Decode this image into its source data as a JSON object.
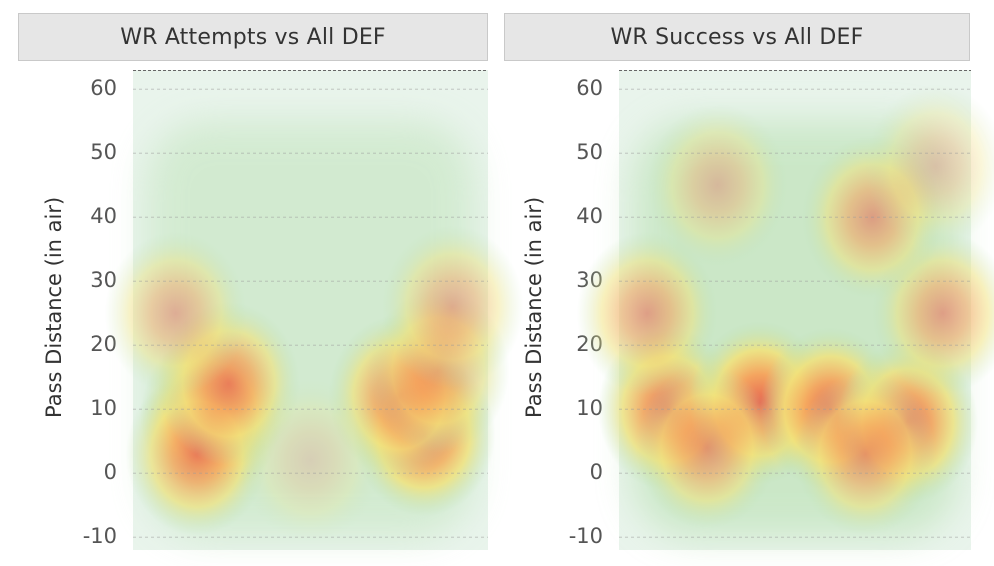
{
  "chart_data": [
    {
      "type": "heatmap",
      "title": "WR Attempts vs All DEF",
      "ylabel": "Pass Distance (in air)",
      "xlabel": "",
      "ylim": [
        -12,
        63
      ],
      "yticks": [
        60,
        50,
        40,
        30,
        20,
        10,
        0,
        -10
      ],
      "grid": true,
      "colormap": [
        "#e9f4ec",
        "#b8e0b0",
        "#f2e27a",
        "#f6a15a",
        "#e8604a"
      ],
      "hotspots": [
        {
          "x": 0.22,
          "y": 9,
          "intensity": 0.85
        },
        {
          "x": 0.18,
          "y": 3,
          "intensity": 0.75
        },
        {
          "x": 0.27,
          "y": 14,
          "intensity": 0.7
        },
        {
          "x": 0.82,
          "y": 6,
          "intensity": 0.9
        },
        {
          "x": 0.75,
          "y": 12,
          "intensity": 0.75
        },
        {
          "x": 0.86,
          "y": 16,
          "intensity": 0.55
        },
        {
          "x": 0.12,
          "y": 25,
          "intensity": 0.45
        },
        {
          "x": 0.9,
          "y": 26,
          "intensity": 0.45
        },
        {
          "x": 0.5,
          "y": 2,
          "intensity": 0.2
        }
      ]
    },
    {
      "type": "heatmap",
      "title": "WR Success vs All DEF",
      "ylabel": "Pass Distance (in air)",
      "xlabel": "",
      "ylim": [
        -12,
        63
      ],
      "yticks": [
        60,
        50,
        40,
        30,
        20,
        10,
        0,
        -10
      ],
      "grid": true,
      "colormap": [
        "#e9f4ec",
        "#b8e0b0",
        "#f2e27a",
        "#f6a15a",
        "#e8604a"
      ],
      "hotspots": [
        {
          "x": 0.14,
          "y": 10,
          "intensity": 0.85
        },
        {
          "x": 0.4,
          "y": 11,
          "intensity": 0.95
        },
        {
          "x": 0.6,
          "y": 10,
          "intensity": 0.9
        },
        {
          "x": 0.82,
          "y": 8,
          "intensity": 0.85
        },
        {
          "x": 0.25,
          "y": 4,
          "intensity": 0.6
        },
        {
          "x": 0.7,
          "y": 3,
          "intensity": 0.6
        },
        {
          "x": 0.08,
          "y": 25,
          "intensity": 0.55
        },
        {
          "x": 0.92,
          "y": 25,
          "intensity": 0.55
        },
        {
          "x": 0.72,
          "y": 40,
          "intensity": 0.55
        },
        {
          "x": 0.28,
          "y": 45,
          "intensity": 0.35
        },
        {
          "x": 0.9,
          "y": 48,
          "intensity": 0.3
        }
      ]
    }
  ]
}
